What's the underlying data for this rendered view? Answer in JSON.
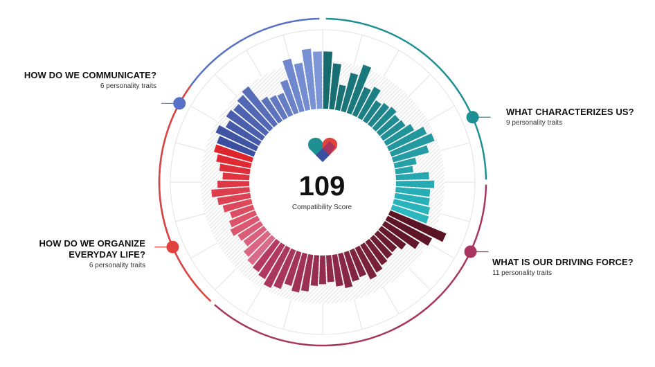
{
  "score": {
    "value": "109",
    "label": "Compatibility Score"
  },
  "icon": "heart-logo-icon",
  "categories": [
    {
      "id": "communicate",
      "title": "HOW DO WE COMMUNICATE?",
      "subtitle": "6 personality traits",
      "color": "#5570c6"
    },
    {
      "id": "characterizes",
      "title": "WHAT CHARACTERIZES US?",
      "subtitle": "9 personality traits",
      "color": "#1e8f93"
    },
    {
      "id": "driving",
      "title": "WHAT IS OUR DRIVING FORCE?",
      "subtitle": "11 personality traits",
      "color": "#a8355e"
    },
    {
      "id": "organize",
      "title": "HOW DO WE ORGANIZE\nEVERYDAY LIFE?",
      "subtitle": "6 personality traits",
      "color": "#e0423e"
    }
  ],
  "chart_data": {
    "type": "radial-bar",
    "title": "",
    "score": 109,
    "value_range": [
      0,
      100
    ],
    "series": [
      {
        "category": "WHAT CHARACTERIZES US?",
        "color_from": "#166b6e",
        "color_to": "#2ab7c0",
        "values": [
          90,
          72,
          40,
          62,
          80,
          48,
          55,
          38,
          42,
          45,
          40,
          42,
          50,
          65,
          72,
          58,
          35,
          28,
          52,
          60,
          54,
          55,
          58,
          60
        ]
      },
      {
        "category": "WHAT IS OUR DRIVING FORCE?",
        "color_from": "#5a1424",
        "color_to": "#b43a64",
        "values": [
          95,
          78,
          64,
          48,
          40,
          42,
          45,
          50,
          55,
          45,
          48,
          55,
          50,
          42,
          45,
          48,
          58,
          62,
          55,
          65,
          70,
          62,
          58
        ]
      },
      {
        "category": "HOW DO WE ORGANIZE EVERYDAY LIFE?",
        "color_from": "#d96b8a",
        "color_to": "#e0242c",
        "values": [
          55,
          50,
          40,
          42,
          48,
          44,
          38,
          46,
          52,
          60,
          50,
          42,
          48,
          55,
          62
        ]
      },
      {
        "category": "HOW DO WE COMMUNICATE?",
        "color_from": "#3b4fa0",
        "color_to": "#7d96d8",
        "values": [
          62,
          70,
          60,
          68,
          65,
          70,
          75,
          45,
          40,
          38,
          55,
          85,
          75,
          95,
          90
        ]
      }
    ]
  }
}
